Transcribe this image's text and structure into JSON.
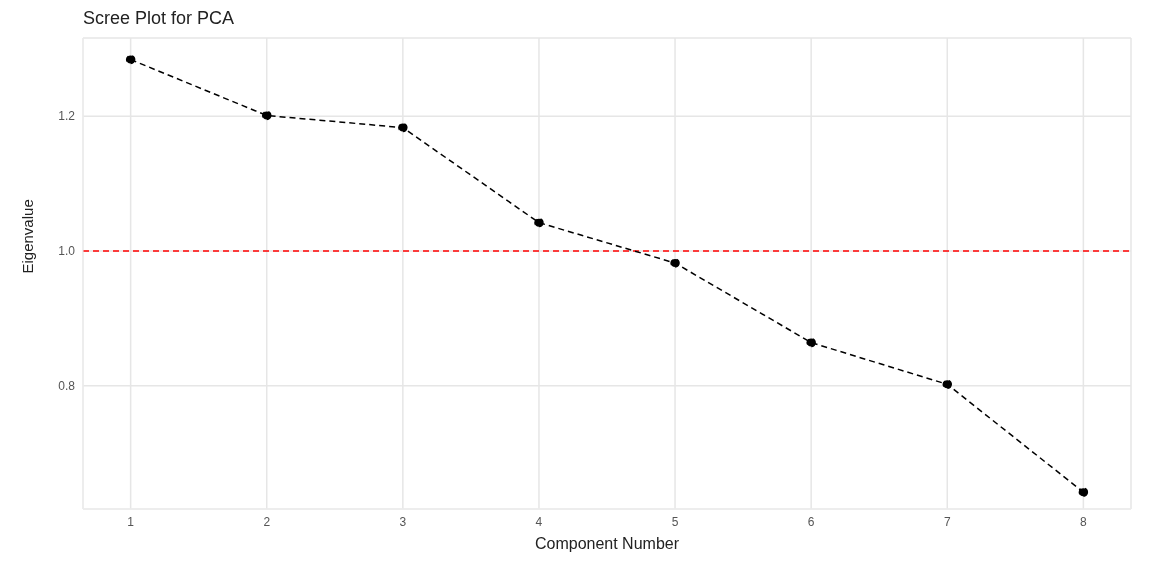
{
  "chart_data": {
    "type": "line",
    "title": "Scree Plot for PCA",
    "xlabel": "Component Number",
    "ylabel": "Eigenvalue",
    "x": [
      1,
      2,
      3,
      4,
      5,
      6,
      7,
      8
    ],
    "series": [
      {
        "color": "#000000",
        "values": [
          1.284,
          1.201,
          1.183,
          1.042,
          0.982,
          0.864,
          0.802,
          0.642
        ]
      }
    ],
    "xlim": [
      0.65,
      8.35
    ],
    "xticks": [
      1,
      2,
      3,
      4,
      5,
      6,
      7,
      8
    ],
    "ylim": [
      0.617,
      1.316
    ],
    "yticks": [
      0.8,
      {
        "value": 1.0,
        "label": "1.0"
      },
      1.2
    ],
    "ref_lines": [
      {
        "axis": "y",
        "value": 1.0,
        "color": "#ff0000",
        "line_style": "dashed"
      }
    ],
    "grid": true,
    "marker": "circle",
    "line_style": "dashed"
  }
}
